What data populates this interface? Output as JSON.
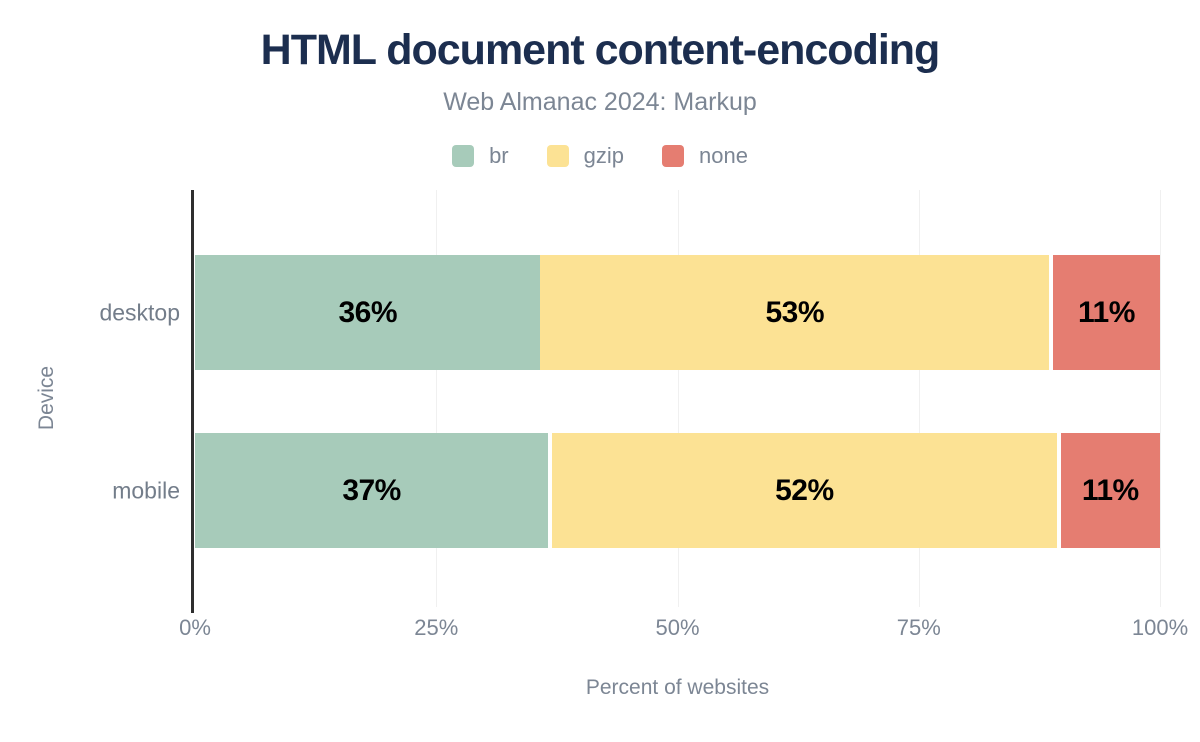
{
  "title": "HTML document content-encoding",
  "subtitle": "Web Almanac 2024: Markup",
  "legend": {
    "items": [
      {
        "label": "br",
        "color": "#a7cbba"
      },
      {
        "label": "gzip",
        "color": "#fce294"
      },
      {
        "label": "none",
        "color": "#e57d71"
      }
    ]
  },
  "axes": {
    "x_title": "Percent of websites",
    "y_title": "Device"
  },
  "theme": {
    "title_color": "#1c2e4f",
    "text_color": "#7c8694",
    "axis_line_color": "#2e2e2e",
    "gridline_color": "#f0f0f0",
    "bar_label_color": "#000000",
    "background": "#ffffff"
  },
  "chart_data": {
    "type": "bar",
    "orientation": "horizontal",
    "stacked": true,
    "title": "HTML document content-encoding",
    "subtitle": "Web Almanac 2024: Markup",
    "categories": [
      "desktop",
      "mobile"
    ],
    "series": [
      {
        "name": "br",
        "color": "#a7cbba",
        "values": [
          36,
          37
        ],
        "labels": [
          "36%",
          "37%"
        ]
      },
      {
        "name": "gzip",
        "color": "#fce294",
        "values": [
          53,
          52
        ],
        "labels": [
          "53%",
          "52%"
        ]
      },
      {
        "name": "none",
        "color": "#e57d71",
        "values": [
          11,
          11
        ],
        "labels": [
          "11%",
          "11%"
        ]
      }
    ],
    "segments_geometry_pct": [
      [
        {
          "start": 0,
          "width": 35.8
        },
        {
          "start": 35.8,
          "width": 52.7
        },
        {
          "start": 88.9,
          "width": 11.1
        }
      ],
      [
        {
          "start": 0,
          "width": 36.6
        },
        {
          "start": 37.0,
          "width": 52.3
        },
        {
          "start": 89.7,
          "width": 10.3
        }
      ]
    ],
    "xlabel": "Percent of websites",
    "ylabel": "Device",
    "xlim": [
      0,
      100
    ],
    "x_ticks": [
      {
        "value": 0,
        "label": "0%"
      },
      {
        "value": 25,
        "label": "25%"
      },
      {
        "value": 50,
        "label": "50%"
      },
      {
        "value": 75,
        "label": "75%"
      },
      {
        "value": 100,
        "label": "100%"
      }
    ],
    "grid": "vertical",
    "legend_position": "top"
  }
}
